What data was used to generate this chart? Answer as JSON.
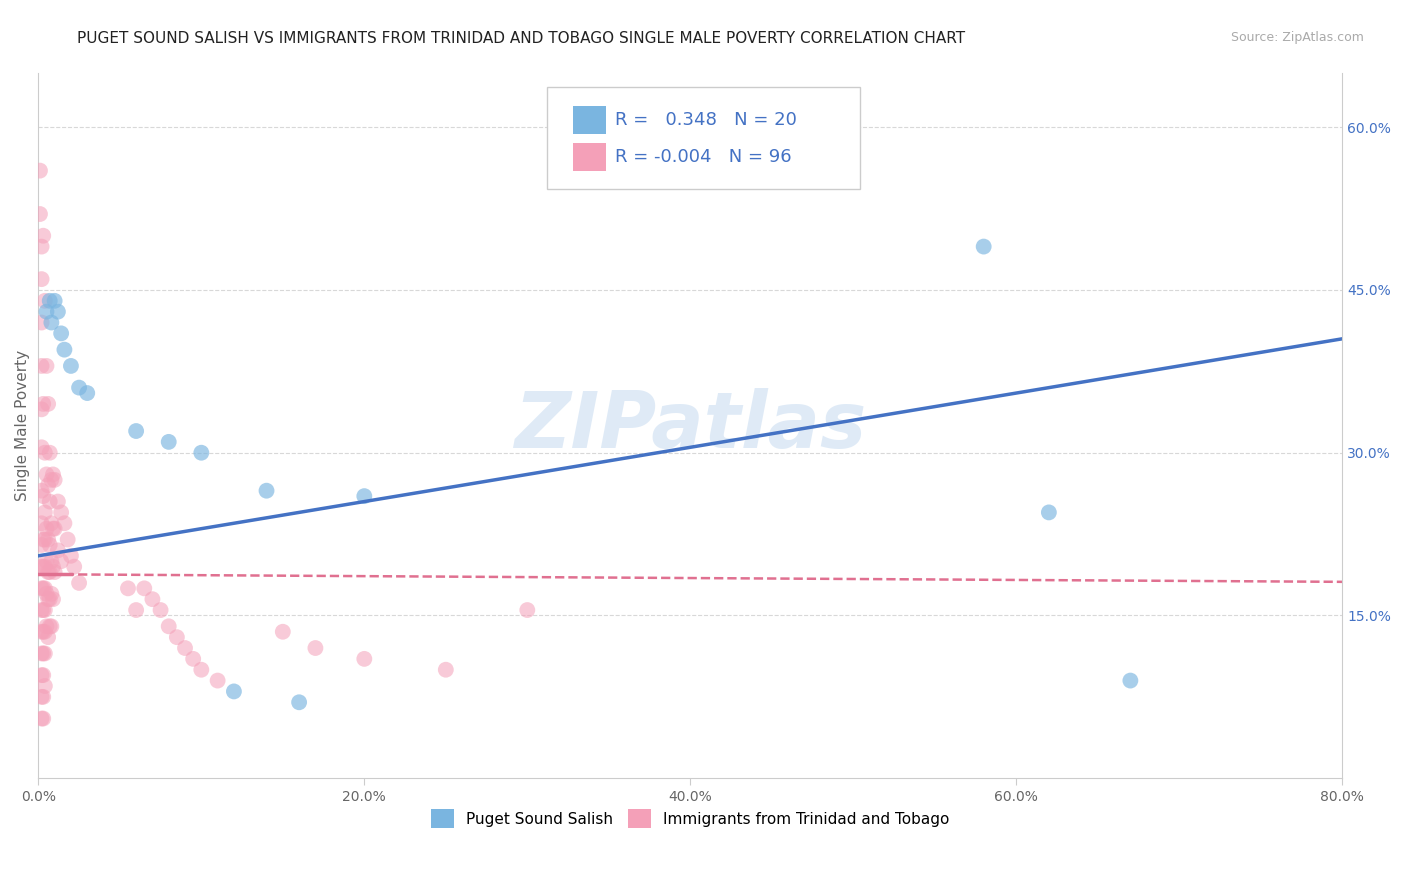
{
  "title": "PUGET SOUND SALISH VS IMMIGRANTS FROM TRINIDAD AND TOBAGO SINGLE MALE POVERTY CORRELATION CHART",
  "source": "Source: ZipAtlas.com",
  "ylabel": "Single Male Poverty",
  "xlim": [
    0.0,
    0.8
  ],
  "ylim": [
    0.0,
    0.65
  ],
  "xticks": [
    0.0,
    0.2,
    0.4,
    0.6,
    0.8
  ],
  "xticklabels": [
    "0.0%",
    "20.0%",
    "40.0%",
    "60.0%",
    "80.0%"
  ],
  "yticks": [
    0.15,
    0.3,
    0.45,
    0.6
  ],
  "yticklabels": [
    "15.0%",
    "30.0%",
    "45.0%",
    "60.0%"
  ],
  "blue_r": 0.348,
  "blue_n": 20,
  "pink_r": -0.004,
  "pink_n": 96,
  "blue_color": "#7ab5e0",
  "pink_color": "#f4a0b8",
  "blue_scatter": [
    [
      0.005,
      0.43
    ],
    [
      0.007,
      0.44
    ],
    [
      0.008,
      0.42
    ],
    [
      0.01,
      0.44
    ],
    [
      0.012,
      0.43
    ],
    [
      0.014,
      0.41
    ],
    [
      0.016,
      0.395
    ],
    [
      0.02,
      0.38
    ],
    [
      0.025,
      0.36
    ],
    [
      0.03,
      0.355
    ],
    [
      0.06,
      0.32
    ],
    [
      0.08,
      0.31
    ],
    [
      0.1,
      0.3
    ],
    [
      0.14,
      0.265
    ],
    [
      0.2,
      0.26
    ],
    [
      0.58,
      0.49
    ],
    [
      0.62,
      0.245
    ],
    [
      0.67,
      0.09
    ],
    [
      0.12,
      0.08
    ],
    [
      0.16,
      0.07
    ]
  ],
  "pink_scatter": [
    [
      0.001,
      0.56
    ],
    [
      0.001,
      0.52
    ],
    [
      0.002,
      0.49
    ],
    [
      0.002,
      0.46
    ],
    [
      0.002,
      0.42
    ],
    [
      0.002,
      0.38
    ],
    [
      0.002,
      0.34
    ],
    [
      0.002,
      0.305
    ],
    [
      0.002,
      0.265
    ],
    [
      0.002,
      0.235
    ],
    [
      0.002,
      0.215
    ],
    [
      0.002,
      0.195
    ],
    [
      0.002,
      0.175
    ],
    [
      0.002,
      0.155
    ],
    [
      0.002,
      0.135
    ],
    [
      0.002,
      0.115
    ],
    [
      0.002,
      0.095
    ],
    [
      0.002,
      0.075
    ],
    [
      0.002,
      0.055
    ],
    [
      0.003,
      0.5
    ],
    [
      0.003,
      0.345
    ],
    [
      0.003,
      0.26
    ],
    [
      0.003,
      0.22
    ],
    [
      0.003,
      0.195
    ],
    [
      0.003,
      0.175
    ],
    [
      0.003,
      0.155
    ],
    [
      0.003,
      0.135
    ],
    [
      0.003,
      0.115
    ],
    [
      0.003,
      0.095
    ],
    [
      0.003,
      0.075
    ],
    [
      0.003,
      0.055
    ],
    [
      0.004,
      0.44
    ],
    [
      0.004,
      0.3
    ],
    [
      0.004,
      0.245
    ],
    [
      0.004,
      0.22
    ],
    [
      0.004,
      0.195
    ],
    [
      0.004,
      0.175
    ],
    [
      0.004,
      0.155
    ],
    [
      0.004,
      0.135
    ],
    [
      0.004,
      0.115
    ],
    [
      0.004,
      0.085
    ],
    [
      0.005,
      0.38
    ],
    [
      0.005,
      0.28
    ],
    [
      0.005,
      0.23
    ],
    [
      0.005,
      0.2
    ],
    [
      0.005,
      0.17
    ],
    [
      0.005,
      0.14
    ],
    [
      0.006,
      0.345
    ],
    [
      0.006,
      0.27
    ],
    [
      0.006,
      0.22
    ],
    [
      0.006,
      0.19
    ],
    [
      0.006,
      0.165
    ],
    [
      0.006,
      0.13
    ],
    [
      0.007,
      0.3
    ],
    [
      0.007,
      0.255
    ],
    [
      0.007,
      0.215
    ],
    [
      0.007,
      0.19
    ],
    [
      0.007,
      0.165
    ],
    [
      0.007,
      0.14
    ],
    [
      0.008,
      0.275
    ],
    [
      0.008,
      0.235
    ],
    [
      0.008,
      0.2
    ],
    [
      0.008,
      0.17
    ],
    [
      0.008,
      0.14
    ],
    [
      0.009,
      0.28
    ],
    [
      0.009,
      0.23
    ],
    [
      0.009,
      0.195
    ],
    [
      0.009,
      0.165
    ],
    [
      0.01,
      0.275
    ],
    [
      0.01,
      0.23
    ],
    [
      0.01,
      0.19
    ],
    [
      0.012,
      0.255
    ],
    [
      0.012,
      0.21
    ],
    [
      0.014,
      0.245
    ],
    [
      0.014,
      0.2
    ],
    [
      0.016,
      0.235
    ],
    [
      0.018,
      0.22
    ],
    [
      0.02,
      0.205
    ],
    [
      0.022,
      0.195
    ],
    [
      0.025,
      0.18
    ],
    [
      0.055,
      0.175
    ],
    [
      0.06,
      0.155
    ],
    [
      0.065,
      0.175
    ],
    [
      0.07,
      0.165
    ],
    [
      0.075,
      0.155
    ],
    [
      0.08,
      0.14
    ],
    [
      0.085,
      0.13
    ],
    [
      0.09,
      0.12
    ],
    [
      0.095,
      0.11
    ],
    [
      0.1,
      0.1
    ],
    [
      0.11,
      0.09
    ],
    [
      0.15,
      0.135
    ],
    [
      0.17,
      0.12
    ],
    [
      0.2,
      0.11
    ],
    [
      0.25,
      0.1
    ],
    [
      0.3,
      0.155
    ]
  ],
  "blue_line_x": [
    0.0,
    0.8
  ],
  "blue_line_y": [
    0.205,
    0.405
  ],
  "pink_line_x": [
    0.0,
    0.8
  ],
  "pink_line_y": [
    0.188,
    0.181
  ],
  "watermark_text": "ZIPatlas",
  "grid_color": "#d8d8d8",
  "background_color": "#ffffff",
  "title_fontsize": 11,
  "axis_label_fontsize": 11,
  "tick_fontsize": 10,
  "legend_fontsize": 12
}
